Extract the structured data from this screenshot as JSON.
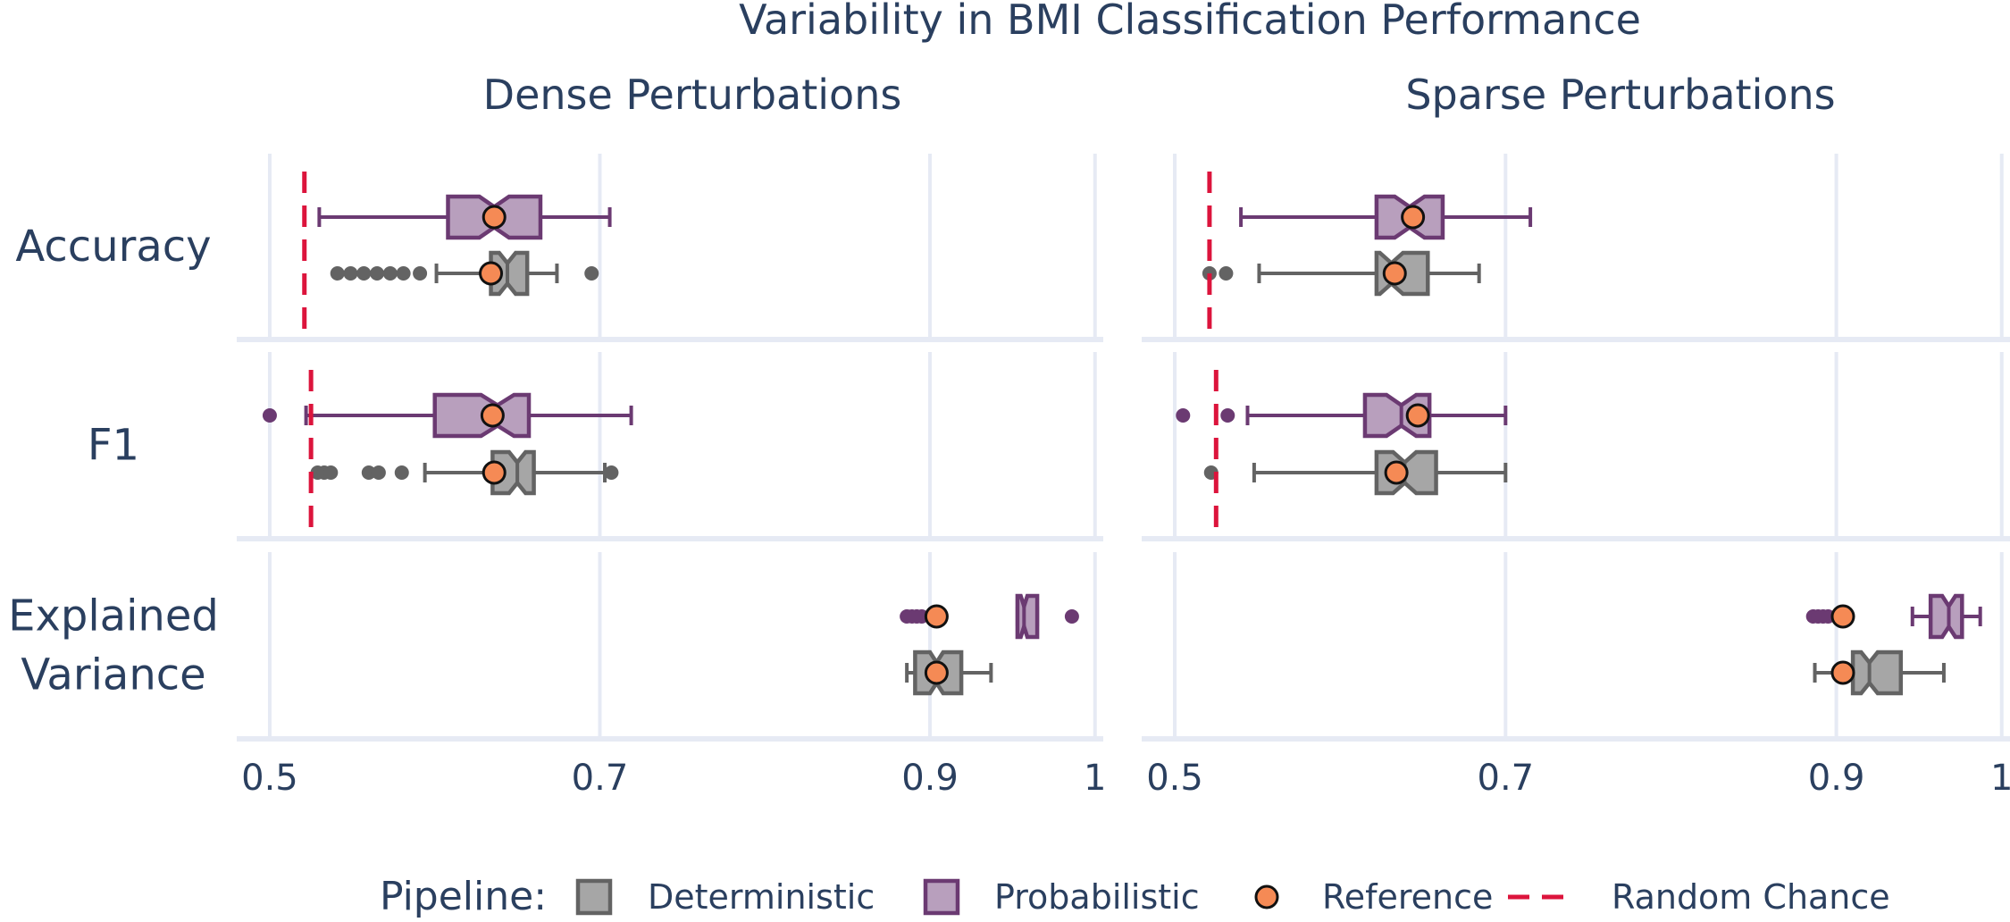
{
  "chart_data": {
    "type": "box",
    "title": "Variability in BMI Classification Performance",
    "panels": [
      {
        "name": "dense",
        "title": "Dense Perturbations"
      },
      {
        "name": "sparse",
        "title": "Sparse Perturbations"
      }
    ],
    "rows": [
      {
        "name": "accuracy",
        "label_lines": [
          "Accuracy"
        ]
      },
      {
        "name": "f1",
        "label_lines": [
          "F1"
        ]
      },
      {
        "name": "explained-variance",
        "label_lines": [
          "Explained",
          "Variance"
        ]
      }
    ],
    "x_range": [
      0.48,
      1.005
    ],
    "x_ticks": [
      {
        "value": 0.5,
        "label": "0.5"
      },
      {
        "value": 0.7,
        "label": "0.7"
      },
      {
        "value": 0.9,
        "label": "0.9"
      },
      {
        "value": 1.0,
        "label": "1"
      }
    ],
    "grid": true,
    "legend": {
      "title": "Pipeline:",
      "placement": "bottom",
      "items": [
        {
          "type": "box",
          "label": "Deterministic",
          "fill": "#a6a6a6",
          "stroke": "#636363"
        },
        {
          "type": "box",
          "label": "Probabilistic",
          "fill": "#b89fbd",
          "stroke": "#6b3a72"
        },
        {
          "type": "marker",
          "label": "Reference",
          "fill": "#f58a55",
          "stroke": "#111111"
        },
        {
          "type": "dash",
          "label": "Random Chance",
          "stroke": "#dc143c"
        }
      ]
    },
    "colors": {
      "deterministic_fill": "#a6a6a6",
      "deterministic_line": "#636363",
      "probabilistic_fill": "#b89fbd",
      "probabilistic_line": "#6b3a72",
      "reference": "#f58a55",
      "random_chance": "#dc143c",
      "grid": "#e6eaf4",
      "text": "#2a3f5f"
    },
    "series": [
      {
        "panel": "dense",
        "row": "accuracy",
        "pipeline": "Probabilistic",
        "wlow": 0.53,
        "q1": 0.608,
        "median": 0.636,
        "q3": 0.664,
        "whigh": 0.706,
        "notch": 0.009,
        "reference": 0.636,
        "outliers": []
      },
      {
        "panel": "dense",
        "row": "accuracy",
        "pipeline": "Deterministic",
        "wlow": 0.601,
        "q1": 0.634,
        "median": 0.644,
        "q3": 0.656,
        "whigh": 0.674,
        "notch": 0.005,
        "reference": 0.634,
        "outliers": [
          0.541,
          0.549,
          0.557,
          0.565,
          0.573,
          0.581,
          0.591,
          0.695
        ]
      },
      {
        "panel": "dense",
        "row": "f1",
        "pipeline": "Probabilistic",
        "wlow": 0.522,
        "q1": 0.6,
        "median": 0.638,
        "q3": 0.657,
        "whigh": 0.719,
        "notch": 0.01,
        "reference": 0.635,
        "outliers": [
          0.5
        ]
      },
      {
        "panel": "dense",
        "row": "f1",
        "pipeline": "Deterministic",
        "wlow": 0.594,
        "q1": 0.635,
        "median": 0.65,
        "q3": 0.66,
        "whigh": 0.703,
        "notch": 0.005,
        "reference": 0.636,
        "outliers": [
          0.529,
          0.533,
          0.537,
          0.56,
          0.566,
          0.58,
          0.707
        ]
      },
      {
        "panel": "dense",
        "row": "explained-variance",
        "pipeline": "Probabilistic",
        "wlow": 0.953,
        "q1": 0.953,
        "median": 0.957,
        "q3": 0.965,
        "whigh": 0.965,
        "notch": 0.002,
        "reference": 0.904,
        "outliers": [
          0.886,
          0.889,
          0.892,
          0.895,
          0.986
        ]
      },
      {
        "panel": "dense",
        "row": "explained-variance",
        "pipeline": "Deterministic",
        "wlow": 0.886,
        "q1": 0.891,
        "median": 0.904,
        "q3": 0.919,
        "whigh": 0.937,
        "notch": 0.004,
        "reference": 0.904,
        "outliers": []
      },
      {
        "panel": "sparse",
        "row": "accuracy",
        "pipeline": "Probabilistic",
        "wlow": 0.54,
        "q1": 0.622,
        "median": 0.642,
        "q3": 0.662,
        "whigh": 0.715,
        "notch": 0.009,
        "reference": 0.644,
        "outliers": []
      },
      {
        "panel": "sparse",
        "row": "accuracy",
        "pipeline": "Deterministic",
        "wlow": 0.551,
        "q1": 0.622,
        "median": 0.631,
        "q3": 0.653,
        "whigh": 0.684,
        "notch": 0.007,
        "reference": 0.633,
        "outliers": [
          0.521,
          0.531
        ]
      },
      {
        "panel": "sparse",
        "row": "f1",
        "pipeline": "Probabilistic",
        "wlow": 0.544,
        "q1": 0.615,
        "median": 0.637,
        "q3": 0.654,
        "whigh": 0.7,
        "notch": 0.009,
        "reference": 0.647,
        "outliers": [
          0.505,
          0.532
        ]
      },
      {
        "panel": "sparse",
        "row": "f1",
        "pipeline": "Deterministic",
        "wlow": 0.548,
        "q1": 0.622,
        "median": 0.639,
        "q3": 0.658,
        "whigh": 0.7,
        "notch": 0.007,
        "reference": 0.634,
        "outliers": [
          0.522
        ]
      },
      {
        "panel": "sparse",
        "row": "explained-variance",
        "pipeline": "Probabilistic",
        "wlow": 0.946,
        "q1": 0.957,
        "median": 0.968,
        "q3": 0.976,
        "whigh": 0.987,
        "notch": 0.004,
        "reference": 0.904,
        "outliers": [
          0.886,
          0.889,
          0.892,
          0.895
        ]
      },
      {
        "panel": "sparse",
        "row": "explained-variance",
        "pipeline": "Deterministic",
        "wlow": 0.887,
        "q1": 0.91,
        "median": 0.92,
        "q3": 0.939,
        "whigh": 0.965,
        "notch": 0.005,
        "reference": 0.904,
        "outliers": []
      }
    ],
    "random_chance": [
      {
        "panel": "dense",
        "row": "accuracy",
        "value": 0.521
      },
      {
        "panel": "dense",
        "row": "f1",
        "value": 0.525
      },
      {
        "panel": "sparse",
        "row": "accuracy",
        "value": 0.521
      },
      {
        "panel": "sparse",
        "row": "f1",
        "value": 0.525
      }
    ]
  }
}
